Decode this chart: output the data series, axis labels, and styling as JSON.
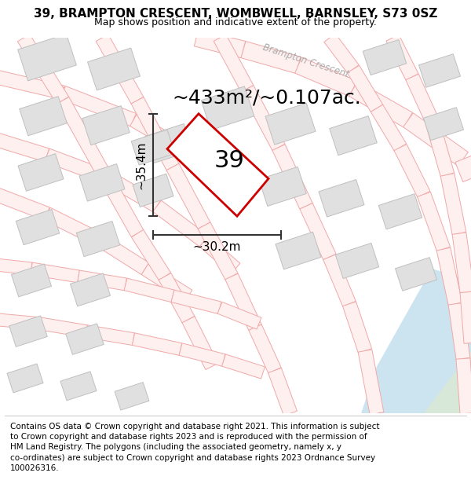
{
  "title": "39, BRAMPTON CRESCENT, WOMBWELL, BARNSLEY, S73 0SZ",
  "subtitle": "Map shows position and indicative extent of the property.",
  "area_label": "~433m²/~0.107ac.",
  "property_number": "39",
  "dim_width": "~30.2m",
  "dim_height": "~35.4m",
  "street_label": "Brampton Crescent",
  "footer": "Contains OS data © Crown copyright and database right 2021. This information is subject to Crown copyright and database rights 2023 and is reproduced with the permission of HM Land Registry. The polygons (including the associated geometry, namely x, y co-ordinates) are subject to Crown copyright and database rights 2023 Ordnance Survey 100026316.",
  "bg_color": "#f7f7f5",
  "road_line_color": "#f0a8a8",
  "road_fill_color": "#fce8e8",
  "building_fill": "#e0e0e0",
  "building_edge": "#c0c0c0",
  "property_fill": "#ffffff",
  "property_edge": "#cc0000",
  "water_fill": "#cce4f0",
  "green_fill": "#d8e8d8",
  "dim_color": "#333333",
  "street_color": "#aaaaaa",
  "title_fontsize": 11,
  "subtitle_fontsize": 9,
  "area_fontsize": 18,
  "number_fontsize": 22,
  "dim_fontsize": 11,
  "footer_fontsize": 7.5
}
